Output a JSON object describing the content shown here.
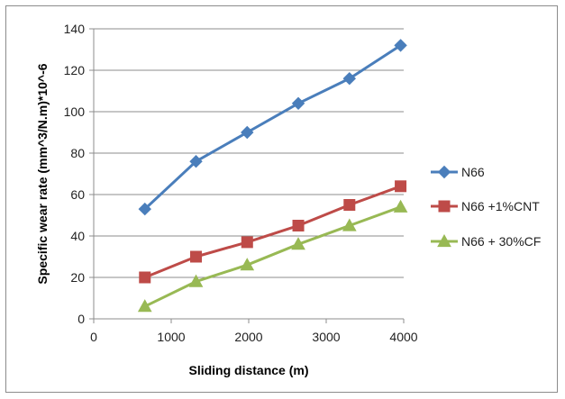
{
  "chart_data": {
    "type": "line",
    "title": "",
    "xlabel": "Sliding distance (m)",
    "ylabel": "Specific wear rate (mm^3/N.m)*10^-6",
    "xlim": [
      0,
      4000
    ],
    "ylim": [
      0,
      140
    ],
    "xticks": [
      0,
      1000,
      2000,
      3000,
      4000
    ],
    "yticks": [
      0,
      20,
      40,
      60,
      80,
      100,
      120,
      140
    ],
    "x": [
      660,
      1320,
      1980,
      2640,
      3300,
      3960
    ],
    "grid": true,
    "legend_position": "right",
    "series": [
      {
        "name": "N66",
        "values": [
          53,
          76,
          90,
          104,
          116,
          132
        ],
        "color": "#4a7ebb",
        "marker": "diamond"
      },
      {
        "name": "N66 +1%CNT",
        "values": [
          20,
          30,
          37,
          45,
          55,
          64
        ],
        "color": "#be4b48",
        "marker": "square"
      },
      {
        "name": "N66 + 30%CF",
        "values": [
          6,
          18,
          26,
          36,
          45,
          54
        ],
        "color": "#98b954",
        "marker": "triangle"
      }
    ]
  }
}
